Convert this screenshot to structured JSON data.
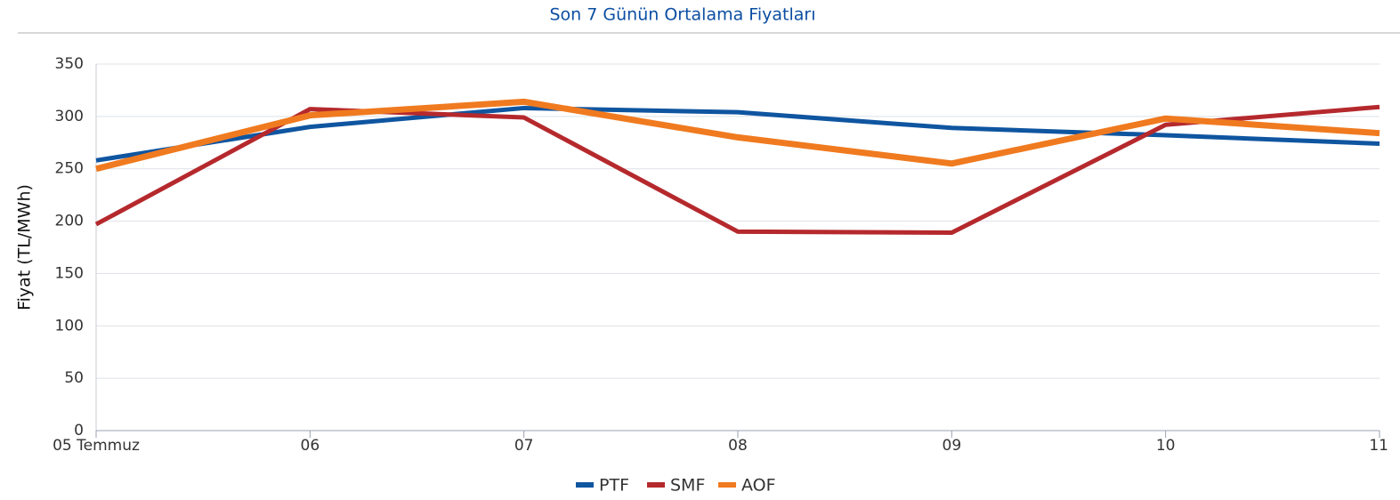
{
  "chart_data": {
    "type": "line",
    "title": "Son 7 Günün Ortalama Fiyatları",
    "y_label": "Fiyat (TL/MWh)",
    "categories": [
      "05 Temmuz",
      "06",
      "07",
      "08",
      "09",
      "10",
      "11"
    ],
    "series": [
      {
        "name": "PTF",
        "color": "#0f55a0",
        "values": [
          258,
          290,
          308,
          304,
          289,
          282,
          274
        ]
      },
      {
        "name": "SMF",
        "color": "#b5292d",
        "values": [
          197,
          307,
          299,
          190,
          189,
          292,
          309
        ]
      },
      {
        "name": "AOF",
        "color": "#f07a1f",
        "values": [
          250,
          301,
          314,
          280,
          255,
          298,
          284
        ]
      }
    ],
    "ylim": [
      0,
      350
    ],
    "yticks": [
      0,
      50,
      100,
      150,
      200,
      250,
      300,
      350
    ],
    "grid": true,
    "legend": "bottom"
  }
}
